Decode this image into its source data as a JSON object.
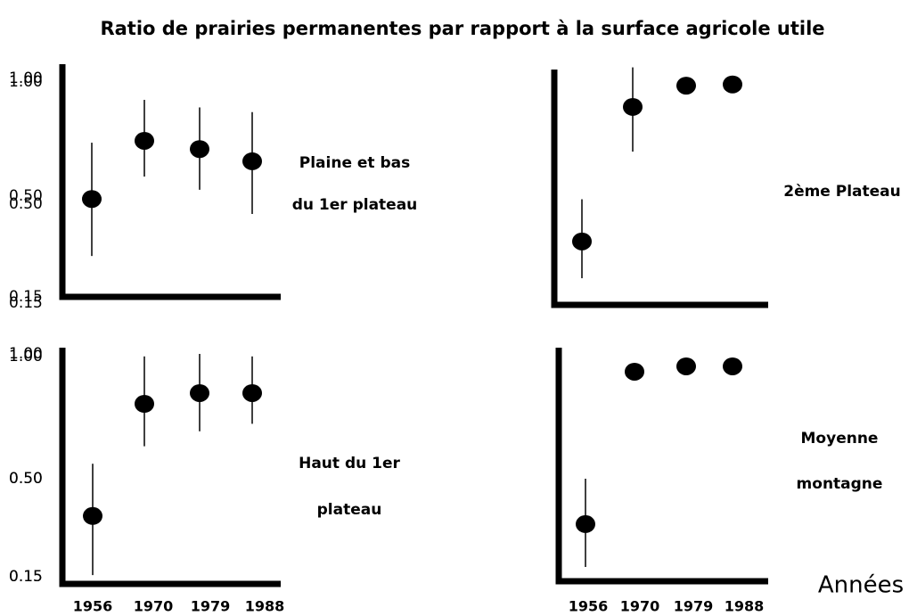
{
  "title": "Ratio de prairies permanentes par rapport à la surface agricole utile",
  "x_axis_label": "Années",
  "chart_data": [
    {
      "type": "point",
      "label": [
        "Plaine et bas",
        "du 1er plateau"
      ],
      "categories": [
        null,
        null,
        null,
        null
      ],
      "values": [
        0.49,
        0.735,
        0.7,
        0.648
      ],
      "lower": [
        0.292,
        0.583,
        0.527,
        0.438
      ],
      "upper": [
        0.727,
        0.909,
        0.877,
        0.857
      ],
      "ylim": [
        0.15,
        1.0
      ],
      "yticks": [
        {
          "value": 0.15,
          "label": "0.15"
        },
        {
          "value": 0.5,
          "label": "0.50"
        },
        {
          "value": 1.0,
          "label": "1.00"
        }
      ],
      "color": "#000000"
    },
    {
      "type": "point",
      "label": [
        "2ème Plateau"
      ],
      "categories": [
        null,
        null,
        null,
        null
      ],
      "values": [
        0.368,
        0.898,
        0.985,
        0.99
      ],
      "lower": [
        0.238,
        0.715,
        null,
        null
      ],
      "upper": [
        0.52,
        1.06,
        null,
        null
      ],
      "ylim": [
        0.15,
        1.0
      ],
      "yticks": [
        {
          "value": 0.15,
          "label": "0.15"
        },
        {
          "value": 0.5,
          "label": "0.50"
        },
        {
          "value": 1.0,
          "label": "1.00"
        }
      ],
      "color": "#000000"
    },
    {
      "type": "point",
      "label": [
        "Haut du 1er",
        "plateau"
      ],
      "categories": [
        "1956",
        "1970",
        "1979",
        "1988"
      ],
      "values": [
        0.367,
        0.8,
        0.843,
        0.843
      ],
      "lower": [
        0.156,
        0.63,
        0.69,
        0.72
      ],
      "upper": [
        0.56,
        0.99,
        1.0,
        0.99
      ],
      "ylim": [
        0.15,
        1.0
      ],
      "yticks": [
        {
          "value": 0.15,
          "label": "0.15"
        },
        {
          "value": 0.5,
          "label": "0.50"
        },
        {
          "value": 1.0,
          "label": "1.00"
        }
      ],
      "color": "#000000"
    },
    {
      "type": "point",
      "label": [
        "Moyenne",
        "montagne"
      ],
      "categories": [
        "1956",
        "1970",
        "1979",
        "1988"
      ],
      "values": [
        0.338,
        0.938,
        0.96,
        0.96
      ],
      "lower": [
        0.185,
        null,
        null,
        null
      ],
      "upper": [
        0.5,
        null,
        null,
        null
      ],
      "ylim": [
        0.15,
        1.0
      ],
      "yticks": [
        {
          "value": 0.15,
          "label": "0.15"
        },
        {
          "value": 0.5,
          "label": "0.50"
        },
        {
          "value": 1.0,
          "label": "1.00"
        }
      ],
      "color": "#000000"
    }
  ]
}
